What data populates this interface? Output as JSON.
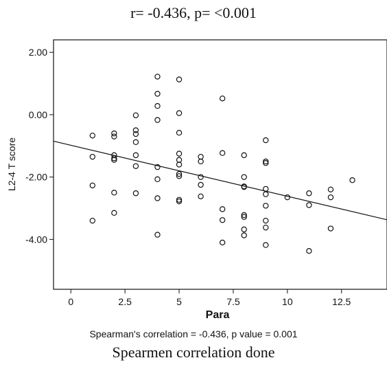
{
  "title": "r= -0.436, p= <0.001",
  "caption": "Spearman's correlation = -0.436, p value = 0.001",
  "subcaption": "Spearmen correlation done",
  "chart_data": {
    "type": "scatter",
    "xlabel": "Para",
    "ylabel": "L2-4 T score",
    "xlim": [
      -0.8,
      14.6
    ],
    "ylim": [
      -5.6,
      2.4
    ],
    "x_ticks": [
      0,
      2.5,
      5,
      7.5,
      10,
      12.5
    ],
    "x_tick_labels": [
      "0",
      "2.5",
      "5",
      "7.5",
      "10",
      "12.5"
    ],
    "y_ticks": [
      2,
      0,
      -2,
      -4
    ],
    "y_tick_labels": [
      "2.00",
      "0.00",
      "-2.00",
      "-4.00"
    ],
    "grid": false,
    "fit_line": {
      "x": [
        -0.8,
        14.6
      ],
      "y": [
        -0.85,
        -3.37
      ]
    },
    "points": [
      {
        "x": 1,
        "y": -0.67
      },
      {
        "x": 1,
        "y": -1.35
      },
      {
        "x": 1,
        "y": -2.27
      },
      {
        "x": 1,
        "y": -3.4
      },
      {
        "x": 2,
        "y": -0.6
      },
      {
        "x": 2,
        "y": -0.7
      },
      {
        "x": 2,
        "y": -1.3
      },
      {
        "x": 2,
        "y": -1.4
      },
      {
        "x": 2,
        "y": -1.45
      },
      {
        "x": 2,
        "y": -2.5
      },
      {
        "x": 2,
        "y": -3.15
      },
      {
        "x": 3,
        "y": -0.02
      },
      {
        "x": 3,
        "y": -0.5
      },
      {
        "x": 3,
        "y": -0.62
      },
      {
        "x": 3,
        "y": -0.88
      },
      {
        "x": 3,
        "y": -1.3
      },
      {
        "x": 3,
        "y": -1.65
      },
      {
        "x": 3,
        "y": -2.52
      },
      {
        "x": 4,
        "y": 1.22
      },
      {
        "x": 4,
        "y": 0.67
      },
      {
        "x": 4,
        "y": 0.28
      },
      {
        "x": 4,
        "y": -0.17
      },
      {
        "x": 4,
        "y": -1.68
      },
      {
        "x": 4,
        "y": -2.07
      },
      {
        "x": 4,
        "y": -2.68
      },
      {
        "x": 4,
        "y": -3.85
      },
      {
        "x": 5,
        "y": 1.13
      },
      {
        "x": 5,
        "y": 0.05
      },
      {
        "x": 5,
        "y": -0.58
      },
      {
        "x": 5,
        "y": -1.25
      },
      {
        "x": 5,
        "y": -1.45
      },
      {
        "x": 5,
        "y": -1.6
      },
      {
        "x": 5,
        "y": -1.9
      },
      {
        "x": 5,
        "y": -1.97
      },
      {
        "x": 5,
        "y": -2.73
      },
      {
        "x": 5,
        "y": -2.78
      },
      {
        "x": 6,
        "y": -1.35
      },
      {
        "x": 6,
        "y": -1.5
      },
      {
        "x": 6,
        "y": -2.0
      },
      {
        "x": 6,
        "y": -2.25
      },
      {
        "x": 6,
        "y": -2.62
      },
      {
        "x": 7,
        "y": 0.52
      },
      {
        "x": 7,
        "y": -1.23
      },
      {
        "x": 7,
        "y": -3.03
      },
      {
        "x": 7,
        "y": -3.38
      },
      {
        "x": 7,
        "y": -4.1
      },
      {
        "x": 8,
        "y": -1.3
      },
      {
        "x": 8,
        "y": -2.0
      },
      {
        "x": 8,
        "y": -2.3
      },
      {
        "x": 8,
        "y": -2.32
      },
      {
        "x": 8,
        "y": -3.22
      },
      {
        "x": 8,
        "y": -3.28
      },
      {
        "x": 8,
        "y": -3.68
      },
      {
        "x": 8,
        "y": -3.87
      },
      {
        "x": 9,
        "y": -0.82
      },
      {
        "x": 9,
        "y": -1.5
      },
      {
        "x": 9,
        "y": -1.55
      },
      {
        "x": 9,
        "y": -2.38
      },
      {
        "x": 9,
        "y": -2.55
      },
      {
        "x": 9,
        "y": -2.92
      },
      {
        "x": 9,
        "y": -3.4
      },
      {
        "x": 9,
        "y": -3.62
      },
      {
        "x": 9,
        "y": -4.18
      },
      {
        "x": 10,
        "y": -2.65
      },
      {
        "x": 11,
        "y": -2.52
      },
      {
        "x": 11,
        "y": -2.9
      },
      {
        "x": 11,
        "y": -4.37
      },
      {
        "x": 12,
        "y": -2.4
      },
      {
        "x": 12,
        "y": -2.65
      },
      {
        "x": 12,
        "y": -3.65
      },
      {
        "x": 13,
        "y": -2.1
      }
    ]
  }
}
